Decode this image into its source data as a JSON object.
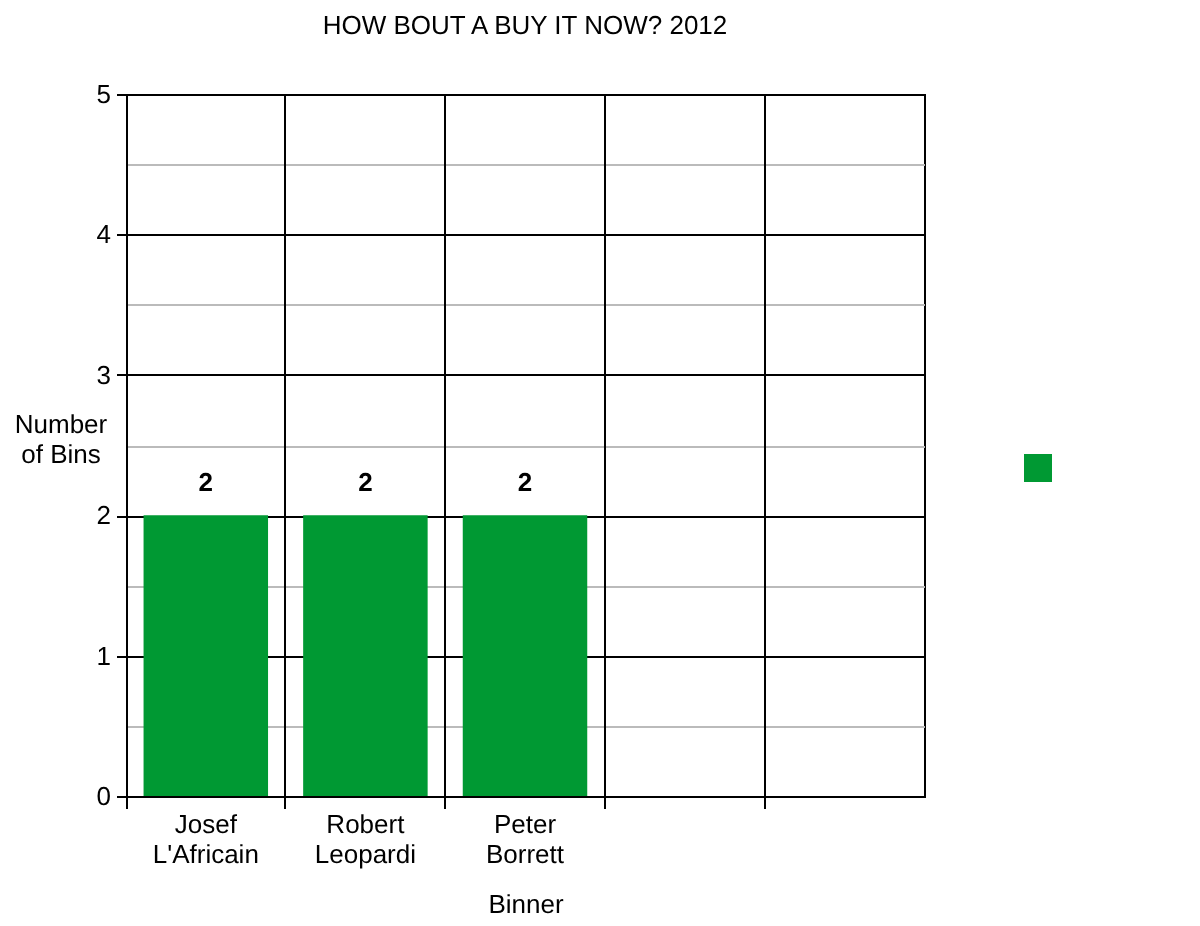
{
  "chart_data": {
    "type": "bar",
    "title": "HOW BOUT A BUY IT NOW? 2012",
    "xlabel": "Binner",
    "ylabel": "Number of Bins",
    "categories": [
      "Josef L'Africain",
      "Robert Leopardi",
      "Peter Borrett",
      null,
      null
    ],
    "series": [
      {
        "color": "#009933",
        "values": [
          2,
          2,
          2,
          null,
          null
        ]
      }
    ],
    "ylim": [
      0,
      5
    ],
    "yticks": [
      0,
      {
        "value": 0.5,
        "label": null
      },
      1,
      {
        "value": 1.5,
        "label": null
      },
      2,
      {
        "value": 2.5,
        "label": null
      },
      3,
      {
        "value": 3.5,
        "label": null
      },
      4,
      {
        "value": 4.5,
        "label": null
      },
      5
    ],
    "grid": true,
    "data_labels": true
  }
}
